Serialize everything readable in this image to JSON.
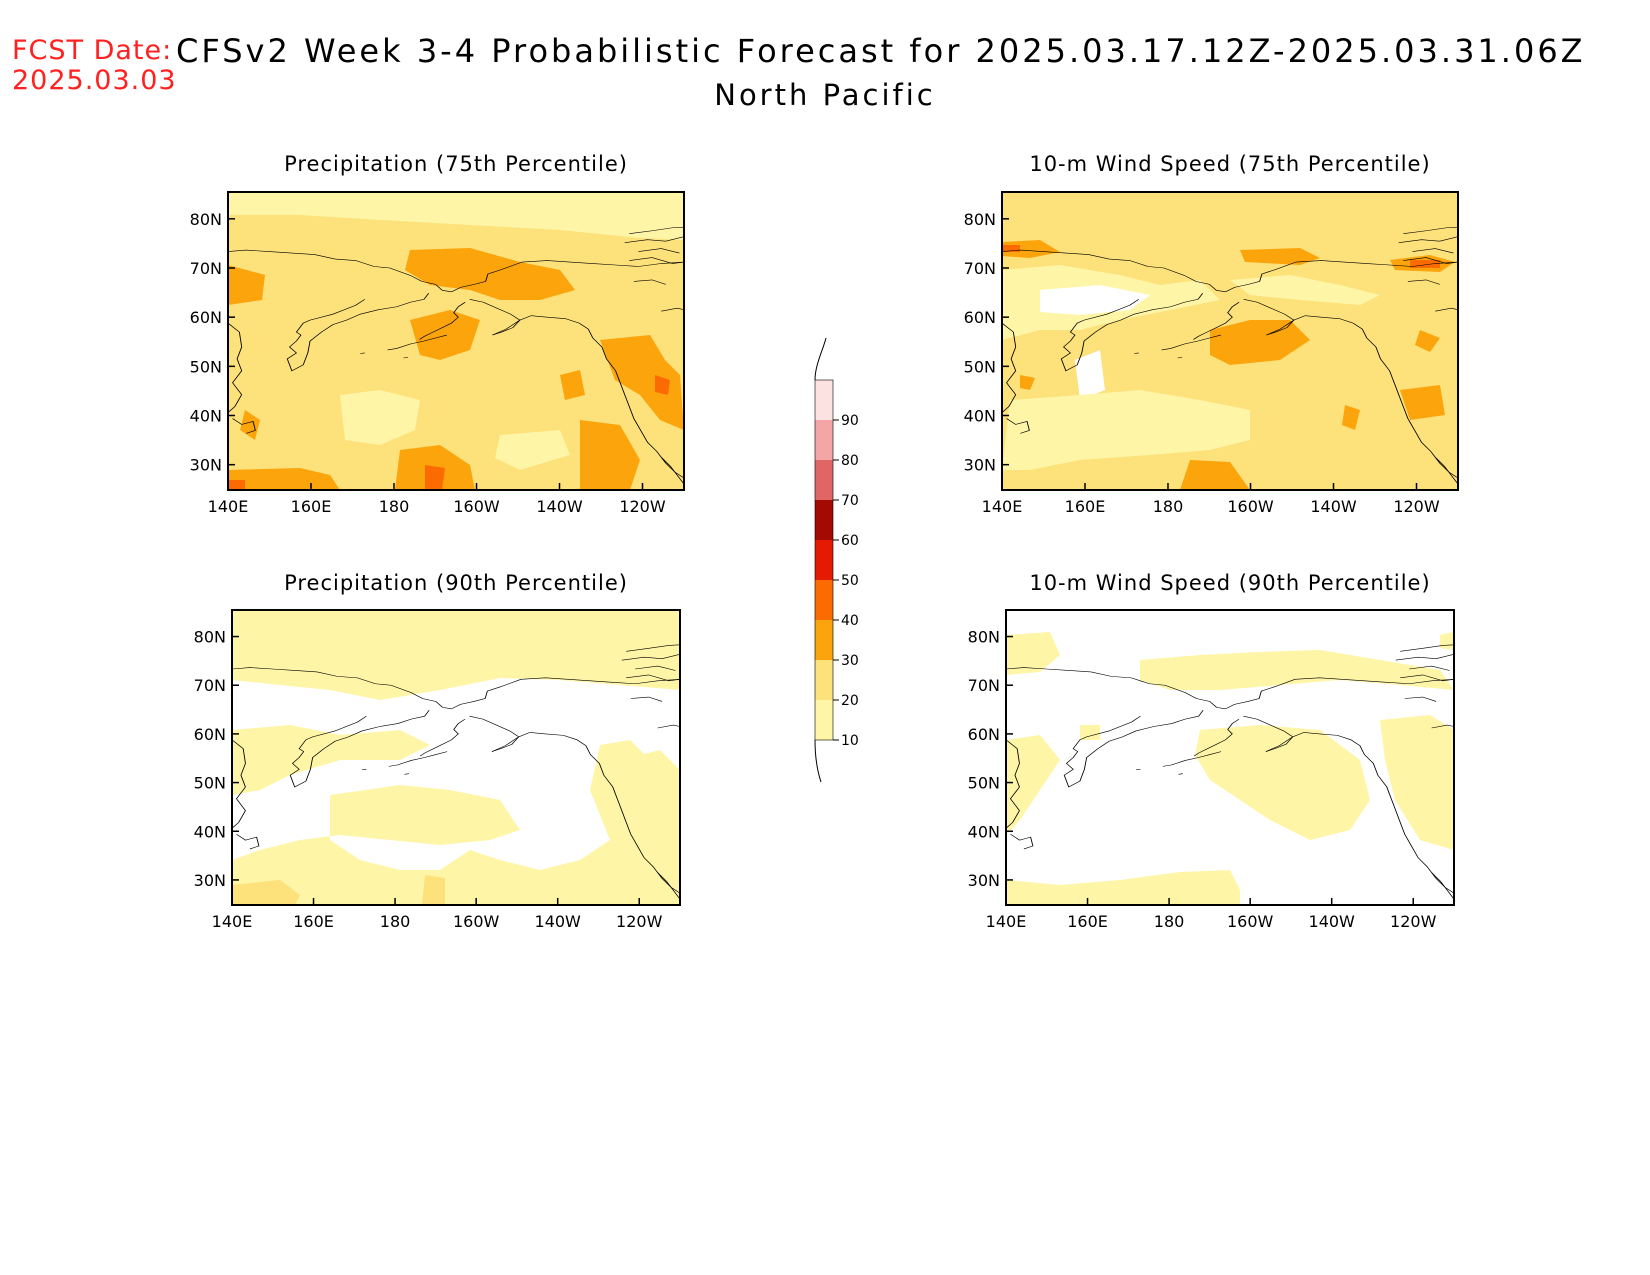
{
  "header": {
    "fcst_label": "FCST Date:",
    "fcst_date": "2025.03.03",
    "title": "CFSv2 Week 3-4 Probabilistic Forecast for 2025.03.17.12Z-2025.03.31.06Z",
    "region": "North Pacific"
  },
  "panels": [
    {
      "title": "Precipitation (75th Percentile)",
      "variant": "p75"
    },
    {
      "title": "10-m Wind Speed (75th Percentile)",
      "variant": "w75"
    },
    {
      "title": "Precipitation (90th Percentile)",
      "variant": "p90"
    },
    {
      "title": "10-m Wind Speed (90th Percentile)",
      "variant": "w90"
    }
  ],
  "axes": {
    "lat_ticks": [
      "80N",
      "70N",
      "60N",
      "50N",
      "40N",
      "30N"
    ],
    "lon_ticks": [
      "140E",
      "160E",
      "180",
      "160W",
      "140W",
      "120W"
    ]
  },
  "colorbar": {
    "levels": [
      "10",
      "20",
      "30",
      "40",
      "50",
      "60",
      "70",
      "80",
      "90"
    ],
    "colors": [
      "#fff5a6",
      "#fde17a",
      "#fba40c",
      "#fc6a02",
      "#e41a03",
      "#a30a03",
      "#e06666",
      "#f4a6a6",
      "#fde2e2"
    ]
  }
}
